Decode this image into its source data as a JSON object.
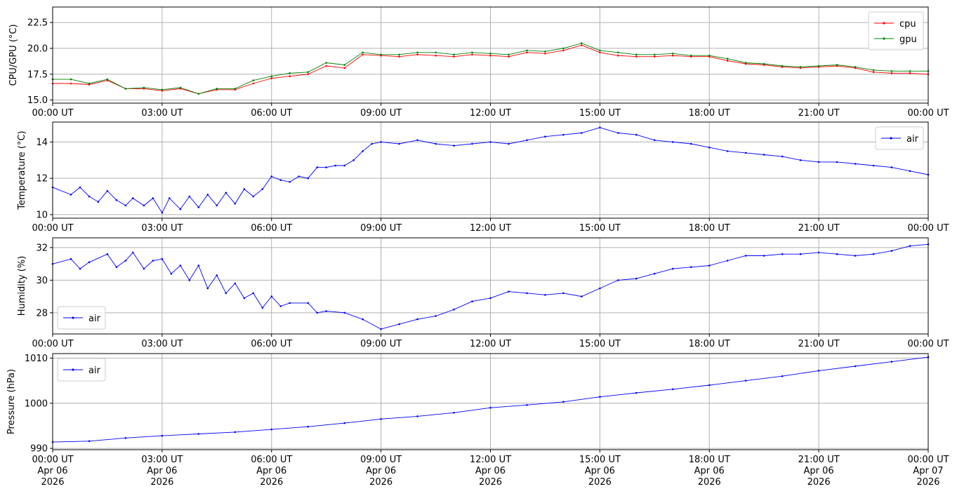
{
  "chart_data": [
    {
      "type": "line",
      "ylabel": "CPU/GPU (°C)",
      "ylim": [
        14.7,
        24.0
      ],
      "yticks": [
        15.0,
        17.5,
        20.0,
        22.5
      ],
      "ytick_labels": [
        "15.0",
        "17.5",
        "20.0",
        "22.5"
      ],
      "x_unit": "hours since 00:00 UT Apr 06 2026",
      "xlim": [
        0,
        24
      ],
      "xticks": [
        0,
        3,
        6,
        9,
        12,
        15,
        18,
        21,
        24
      ],
      "xtick_labels": [
        "00:00 UT",
        "03:00 UT",
        "06:00 UT",
        "09:00 UT",
        "12:00 UT",
        "15:00 UT",
        "18:00 UT",
        "21:00 UT",
        "00:00 UT"
      ],
      "grid": true,
      "legend": "top-right",
      "series": [
        {
          "name": "cpu",
          "color": "#ff0000",
          "x": [
            0,
            0.5,
            1,
            1.5,
            2,
            2.5,
            3,
            3.5,
            4,
            4.5,
            5,
            5.5,
            6,
            6.5,
            7,
            7.5,
            8,
            8.5,
            9,
            9.5,
            10,
            10.5,
            11,
            11.5,
            12,
            12.5,
            13,
            13.5,
            14,
            14.5,
            15,
            15.5,
            16,
            16.5,
            17,
            17.5,
            18,
            18.5,
            19,
            19.5,
            20,
            20.5,
            21,
            21.5,
            22,
            22.5,
            23,
            23.5,
            24
          ],
          "y": [
            16.6,
            16.6,
            16.5,
            16.9,
            16.1,
            16.1,
            15.9,
            16.1,
            15.6,
            16.0,
            16.0,
            16.6,
            17.1,
            17.3,
            17.5,
            18.3,
            18.1,
            19.4,
            19.3,
            19.2,
            19.4,
            19.3,
            19.2,
            19.4,
            19.3,
            19.2,
            19.6,
            19.5,
            19.8,
            20.3,
            19.6,
            19.3,
            19.2,
            19.2,
            19.3,
            19.2,
            19.2,
            18.8,
            18.5,
            18.4,
            18.2,
            18.1,
            18.2,
            18.3,
            18.1,
            17.7,
            17.6,
            17.6,
            17.5
          ]
        },
        {
          "name": "gpu",
          "color": "#008000",
          "x": [
            0,
            0.5,
            1,
            1.5,
            2,
            2.5,
            3,
            3.5,
            4,
            4.5,
            5,
            5.5,
            6,
            6.5,
            7,
            7.5,
            8,
            8.5,
            9,
            9.5,
            10,
            10.5,
            11,
            11.5,
            12,
            12.5,
            13,
            13.5,
            14,
            14.5,
            15,
            15.5,
            16,
            16.5,
            17,
            17.5,
            18,
            18.5,
            19,
            19.5,
            20,
            20.5,
            21,
            21.5,
            22,
            22.5,
            23,
            23.5,
            24
          ],
          "y": [
            17.0,
            17.0,
            16.6,
            17.0,
            16.1,
            16.2,
            16.0,
            16.2,
            15.6,
            16.1,
            16.1,
            16.9,
            17.3,
            17.6,
            17.7,
            18.6,
            18.4,
            19.6,
            19.4,
            19.4,
            19.6,
            19.6,
            19.4,
            19.6,
            19.5,
            19.4,
            19.8,
            19.7,
            20.0,
            20.5,
            19.8,
            19.6,
            19.4,
            19.4,
            19.5,
            19.3,
            19.3,
            19.0,
            18.6,
            18.5,
            18.3,
            18.2,
            18.3,
            18.4,
            18.2,
            17.9,
            17.8,
            17.8,
            17.8
          ]
        }
      ]
    },
    {
      "type": "line",
      "ylabel": "Temperature (°C)",
      "ylim": [
        9.8,
        15.1
      ],
      "yticks": [
        10,
        12,
        14
      ],
      "ytick_labels": [
        "10",
        "12",
        "14"
      ],
      "x_unit": "hours since 00:00 UT Apr 06 2026",
      "xlim": [
        0,
        24
      ],
      "xticks": [
        0,
        3,
        6,
        9,
        12,
        15,
        18,
        21,
        24
      ],
      "xtick_labels": [
        "00:00 UT",
        "03:00 UT",
        "06:00 UT",
        "09:00 UT",
        "12:00 UT",
        "15:00 UT",
        "18:00 UT",
        "21:00 UT",
        "00:00 UT"
      ],
      "grid": true,
      "legend": "top-right",
      "series": [
        {
          "name": "air",
          "color": "#0000ff",
          "x": [
            0,
            0.5,
            0.75,
            1.0,
            1.25,
            1.5,
            1.75,
            2.0,
            2.2,
            2.5,
            2.75,
            3.0,
            3.2,
            3.5,
            3.75,
            4.0,
            4.25,
            4.5,
            4.75,
            5.0,
            5.25,
            5.5,
            5.75,
            6.0,
            6.25,
            6.5,
            6.75,
            7.0,
            7.25,
            7.5,
            7.75,
            8.0,
            8.25,
            8.5,
            8.75,
            9.0,
            9.5,
            10.0,
            10.5,
            11.0,
            11.5,
            12.0,
            12.5,
            13.0,
            13.5,
            14.0,
            14.5,
            15.0,
            15.5,
            16.0,
            16.5,
            17.0,
            17.5,
            18.0,
            18.5,
            19.0,
            19.5,
            20.0,
            20.5,
            21.0,
            21.5,
            22.0,
            22.5,
            23.0,
            23.5,
            24.0
          ],
          "y": [
            11.5,
            11.1,
            11.5,
            11.0,
            10.7,
            11.3,
            10.8,
            10.5,
            10.9,
            10.5,
            10.9,
            10.1,
            10.9,
            10.3,
            11.0,
            10.4,
            11.1,
            10.5,
            11.2,
            10.6,
            11.4,
            11.0,
            11.4,
            12.1,
            11.9,
            11.8,
            12.1,
            12.0,
            12.6,
            12.6,
            12.7,
            12.7,
            13.0,
            13.5,
            13.9,
            14.0,
            13.9,
            14.1,
            13.9,
            13.8,
            13.9,
            14.0,
            13.9,
            14.1,
            14.3,
            14.4,
            14.5,
            14.8,
            14.5,
            14.4,
            14.1,
            14.0,
            13.9,
            13.7,
            13.5,
            13.4,
            13.3,
            13.2,
            13.0,
            12.9,
            12.9,
            12.8,
            12.7,
            12.6,
            12.4,
            12.2
          ]
        }
      ]
    },
    {
      "type": "line",
      "ylabel": "Humidity (%)",
      "ylim": [
        26.7,
        32.6
      ],
      "yticks": [
        28,
        30,
        32
      ],
      "ytick_labels": [
        "28",
        "30",
        "32"
      ],
      "x_unit": "hours since 00:00 UT Apr 06 2026",
      "xlim": [
        0,
        24
      ],
      "xticks": [
        0,
        3,
        6,
        9,
        12,
        15,
        18,
        21,
        24
      ],
      "xtick_labels": [
        "00:00 UT",
        "03:00 UT",
        "06:00 UT",
        "09:00 UT",
        "12:00 UT",
        "15:00 UT",
        "18:00 UT",
        "21:00 UT",
        "00:00 UT"
      ],
      "grid": true,
      "legend": "lower-left",
      "series": [
        {
          "name": "air",
          "color": "#0000ff",
          "x": [
            0,
            0.5,
            0.75,
            1.0,
            1.5,
            1.75,
            2.0,
            2.2,
            2.5,
            2.75,
            3.0,
            3.25,
            3.5,
            3.75,
            4.0,
            4.25,
            4.5,
            4.75,
            5.0,
            5.25,
            5.5,
            5.75,
            6.0,
            6.25,
            6.5,
            7.0,
            7.25,
            7.5,
            8.0,
            8.5,
            9.0,
            9.5,
            10.0,
            10.5,
            11.0,
            11.5,
            12.0,
            12.5,
            13.0,
            13.5,
            14.0,
            14.5,
            15.0,
            15.5,
            16.0,
            16.5,
            17.0,
            17.5,
            18.0,
            18.5,
            19.0,
            19.5,
            20.0,
            20.5,
            21.0,
            21.5,
            22.0,
            22.5,
            23.0,
            23.5,
            24.0
          ],
          "y": [
            31.0,
            31.3,
            30.7,
            31.1,
            31.6,
            30.8,
            31.2,
            31.7,
            30.7,
            31.2,
            31.3,
            30.4,
            30.9,
            30.0,
            30.9,
            29.5,
            30.3,
            29.2,
            29.8,
            28.9,
            29.2,
            28.3,
            29.0,
            28.4,
            28.6,
            28.6,
            28.0,
            28.1,
            28.0,
            27.6,
            27.0,
            27.3,
            27.6,
            27.8,
            28.2,
            28.7,
            28.9,
            29.3,
            29.2,
            29.1,
            29.2,
            29.0,
            29.5,
            30.0,
            30.1,
            30.4,
            30.7,
            30.8,
            30.9,
            31.2,
            31.5,
            31.5,
            31.6,
            31.6,
            31.7,
            31.6,
            31.5,
            31.6,
            31.8,
            32.1,
            32.2
          ]
        }
      ]
    },
    {
      "type": "line",
      "ylabel": "Pressure (hPa)",
      "ylim": [
        989.7,
        1011.0
      ],
      "yticks": [
        990,
        1000,
        1010
      ],
      "ytick_labels": [
        "990",
        "1000",
        "1010"
      ],
      "x_unit": "hours since 00:00 UT Apr 06 2026",
      "xlim": [
        0,
        24
      ],
      "xticks": [
        0,
        3,
        6,
        9,
        12,
        15,
        18,
        21,
        24
      ],
      "xtick_labels": [
        "00:00 UT\nApr 06\n2026",
        "03:00 UT\nApr 06\n2026",
        "06:00 UT\nApr 06\n2026",
        "09:00 UT\nApr 06\n2026",
        "12:00 UT\nApr 06\n2026",
        "15:00 UT\nApr 06\n2026",
        "18:00 UT\nApr 06\n2026",
        "21:00 UT\nApr 06\n2026",
        "00:00 UT\nApr 07\n2026"
      ],
      "grid": true,
      "legend": "top-left",
      "series": [
        {
          "name": "air",
          "color": "#0000ff",
          "x": [
            0,
            1,
            2,
            3,
            4,
            5,
            6,
            7,
            8,
            9,
            10,
            11,
            12,
            13,
            14,
            15,
            16,
            17,
            18,
            19,
            20,
            21,
            22,
            23,
            24
          ],
          "y": [
            991.4,
            991.6,
            992.3,
            992.8,
            993.2,
            993.6,
            994.2,
            994.8,
            995.6,
            996.5,
            997.1,
            997.9,
            999.0,
            999.6,
            1000.3,
            1001.4,
            1002.3,
            1003.1,
            1004.0,
            1005.0,
            1006.0,
            1007.2,
            1008.2,
            1009.2,
            1010.2
          ]
        }
      ]
    }
  ]
}
